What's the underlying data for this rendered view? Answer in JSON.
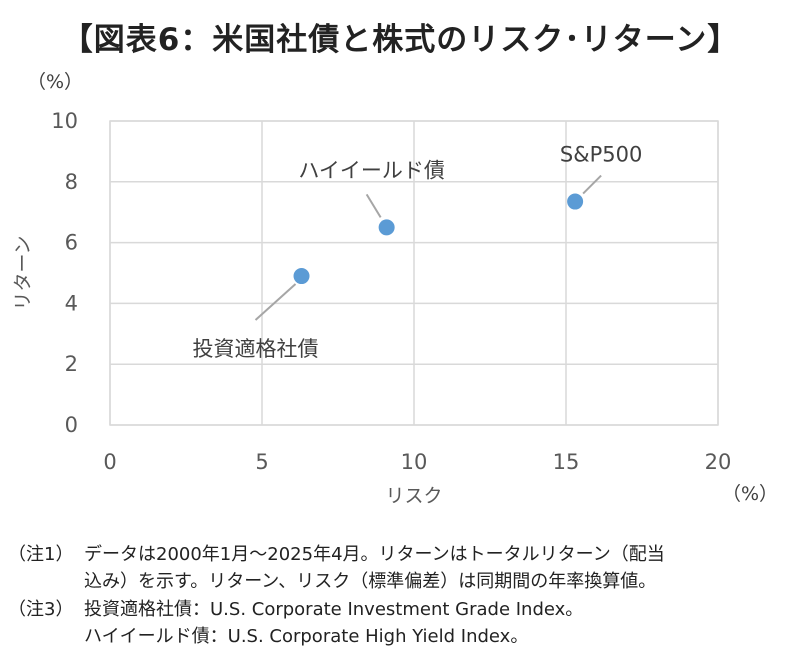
{
  "title": "【図表6：米国社債と株式のリスク･リターン】",
  "chart_data": {
    "type": "scatter",
    "title": "【図表6：米国社債と株式のリスク･リターン】",
    "xlabel": "リスク",
    "ylabel": "リターン",
    "x_unit": "（%）",
    "y_unit": "（%）",
    "xlim": [
      0,
      20
    ],
    "ylim": [
      0,
      10
    ],
    "xticks": [
      0,
      5,
      10,
      15,
      20
    ],
    "yticks": [
      0,
      2,
      4,
      6,
      8,
      10
    ],
    "grid": true,
    "marker_color": "#5B9BD5",
    "points": [
      {
        "label": "投資適格社債",
        "x": 6.3,
        "y": 4.9
      },
      {
        "label": "ハイイールド債",
        "x": 9.1,
        "y": 6.5
      },
      {
        "label": "S&P500",
        "x": 15.3,
        "y": 7.35
      }
    ]
  },
  "notes": [
    {
      "tag": "（注1）",
      "lines": [
        "データは2000年1月～2025年4月。リターンはトータルリターン（配当",
        "込み）を示す。リターン、リスク（標準偏差）は同期間の年率換算値。"
      ]
    },
    {
      "tag": "（注3）",
      "lines": [
        "投資適格社債：U.S. Corporate Investment Grade Index。",
        "ハイイールド債：U.S. Corporate High Yield Index。"
      ]
    }
  ]
}
